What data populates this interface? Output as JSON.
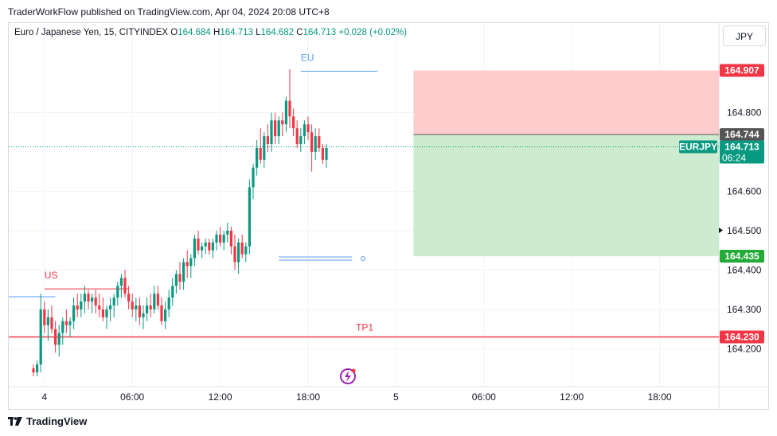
{
  "header": {
    "published": "TraderWorkFlow published on TradingView.com, Apr 04, 2024 20:08 UTC+8"
  },
  "legend": {
    "symbol": "Euro / Japanese Yen, 15, CITYINDEX",
    "o_label": "O",
    "o": "164.684",
    "h_label": "H",
    "h": "164.713",
    "l_label": "L",
    "l": "164.682",
    "c_label": "C",
    "c": "164.713",
    "change": "+0.028 (+0.02%)"
  },
  "currency_button": "JPY",
  "footer": {
    "brand": "TradingView"
  },
  "colors": {
    "up": "#089981",
    "down": "#f23645",
    "stop_zone": "#fdcdcd",
    "target_zone": "#cdebcf",
    "red_label": "#f23645",
    "green_label": "#22ab36",
    "dark_label": "#555555",
    "current_label": "#089981"
  },
  "chart_data": {
    "type": "candlestick",
    "symbol": "EURJPY",
    "ylim": [
      164.12,
      165.04
    ],
    "y_ticks": [
      {
        "value": 164.8,
        "label": "164.800"
      },
      {
        "value": 164.6,
        "label": "164.600"
      },
      {
        "value": 164.5,
        "label": "164.500"
      },
      {
        "value": 164.4,
        "label": "164.400"
      },
      {
        "value": 164.3,
        "label": "164.300"
      },
      {
        "value": 164.2,
        "label": "164.200"
      }
    ],
    "x_ticks": [
      {
        "bar": 3,
        "label": "4"
      },
      {
        "bar": 27,
        "label": "06:00"
      },
      {
        "bar": 51,
        "label": "12:00"
      },
      {
        "bar": 75,
        "label": "18:00"
      },
      {
        "bar": 99,
        "label": "5"
      },
      {
        "bar": 123,
        "label": "06:00"
      },
      {
        "bar": 147,
        "label": "12:00"
      },
      {
        "bar": 171,
        "label": "18:00"
      }
    ],
    "price_labels": [
      {
        "value": 164.907,
        "label": "164.907",
        "kind": "red"
      },
      {
        "value": 164.744,
        "label": "164.744",
        "kind": "dark"
      },
      {
        "value": 164.435,
        "label": "164.435",
        "kind": "green"
      },
      {
        "value": 164.23,
        "label": "164.230",
        "kind": "red"
      }
    ],
    "current": {
      "value": 164.713,
      "label": "164.713",
      "symbol": "EURJPY",
      "countdown": "06:24"
    },
    "annotations": [
      {
        "text": "EU",
        "value": 164.905,
        "from_bar": 73,
        "to_bar": 94
      },
      {
        "text": "US",
        "value": 164.352,
        "from_bar": 3,
        "to_bar": 26
      },
      {
        "text": "TP1",
        "value": 164.23
      }
    ],
    "levels": {
      "old_high": 164.332,
      "range_low_a": 164.433,
      "range_low_b": 164.425
    },
    "position": {
      "from_bar": 104,
      "stop": 164.907,
      "entry": 164.744,
      "target": 164.435
    },
    "candles": [
      [
        164.15,
        164.16,
        164.13,
        164.14
      ],
      [
        164.14,
        164.17,
        164.13,
        164.16
      ],
      [
        164.16,
        164.34,
        164.14,
        164.3
      ],
      [
        164.3,
        164.32,
        164.24,
        164.26
      ],
      [
        164.26,
        164.3,
        164.22,
        164.28
      ],
      [
        164.28,
        164.31,
        164.24,
        164.25
      ],
      [
        164.25,
        164.27,
        164.19,
        164.21
      ],
      [
        164.21,
        164.26,
        164.18,
        164.24
      ],
      [
        164.24,
        164.28,
        164.21,
        164.27
      ],
      [
        164.27,
        164.3,
        164.24,
        164.26
      ],
      [
        164.26,
        164.28,
        164.23,
        164.27
      ],
      [
        164.27,
        164.33,
        164.25,
        164.31
      ],
      [
        164.31,
        164.34,
        164.28,
        164.3
      ],
      [
        164.3,
        164.34,
        164.28,
        164.32
      ],
      [
        164.32,
        164.36,
        164.29,
        164.34
      ],
      [
        164.34,
        164.35,
        164.3,
        164.32
      ],
      [
        164.32,
        164.34,
        164.29,
        164.33
      ],
      [
        164.33,
        164.35,
        164.29,
        164.31
      ],
      [
        164.31,
        164.34,
        164.28,
        164.3
      ],
      [
        164.3,
        164.33,
        164.27,
        164.28
      ],
      [
        164.28,
        164.31,
        164.25,
        164.3
      ],
      [
        164.3,
        164.33,
        164.27,
        164.31
      ],
      [
        164.31,
        164.34,
        164.28,
        164.33
      ],
      [
        164.33,
        164.37,
        164.31,
        164.36
      ],
      [
        164.36,
        164.39,
        164.33,
        164.38
      ],
      [
        164.38,
        164.4,
        164.33,
        164.34
      ],
      [
        164.34,
        164.36,
        164.3,
        164.32
      ],
      [
        164.32,
        164.34,
        164.28,
        164.3
      ],
      [
        164.3,
        164.33,
        164.27,
        164.31
      ],
      [
        164.31,
        164.33,
        164.26,
        164.28
      ],
      [
        164.28,
        164.31,
        164.25,
        164.29
      ],
      [
        164.29,
        164.33,
        164.27,
        164.31
      ],
      [
        164.31,
        164.34,
        164.28,
        164.3
      ],
      [
        164.3,
        164.36,
        164.29,
        164.34
      ],
      [
        164.34,
        164.36,
        164.3,
        164.31
      ],
      [
        164.31,
        164.33,
        164.26,
        164.27
      ],
      [
        164.27,
        164.32,
        164.25,
        164.3
      ],
      [
        164.3,
        164.35,
        164.28,
        164.33
      ],
      [
        164.33,
        164.38,
        164.31,
        164.36
      ],
      [
        164.36,
        164.4,
        164.34,
        164.39
      ],
      [
        164.39,
        164.42,
        164.35,
        164.37
      ],
      [
        164.37,
        164.43,
        164.35,
        164.42
      ],
      [
        164.42,
        164.45,
        164.38,
        164.41
      ],
      [
        164.41,
        164.44,
        164.38,
        164.43
      ],
      [
        164.43,
        164.49,
        164.41,
        164.48
      ],
      [
        164.48,
        164.5,
        164.44,
        164.45
      ],
      [
        164.45,
        164.47,
        164.43,
        164.46
      ],
      [
        164.46,
        164.48,
        164.44,
        164.47
      ],
      [
        164.47,
        164.48,
        164.44,
        164.45
      ],
      [
        164.45,
        164.48,
        164.43,
        164.47
      ],
      [
        164.47,
        164.5,
        164.45,
        164.49
      ],
      [
        164.49,
        164.51,
        164.46,
        164.47
      ],
      [
        164.47,
        164.5,
        164.45,
        164.49
      ],
      [
        164.49,
        164.52,
        164.47,
        164.5
      ],
      [
        164.5,
        164.51,
        164.44,
        164.46
      ],
      [
        164.46,
        164.49,
        164.4,
        164.42
      ],
      [
        164.42,
        164.48,
        164.39,
        164.47
      ],
      [
        164.47,
        164.49,
        164.43,
        164.44
      ],
      [
        164.44,
        164.47,
        164.42,
        164.46
      ],
      [
        164.46,
        164.63,
        164.44,
        164.61
      ],
      [
        164.61,
        164.67,
        164.58,
        164.66
      ],
      [
        164.66,
        164.73,
        164.64,
        164.71
      ],
      [
        164.71,
        164.76,
        164.67,
        164.68
      ],
      [
        164.68,
        164.75,
        164.66,
        164.74
      ],
      [
        164.74,
        164.77,
        164.7,
        164.72
      ],
      [
        164.72,
        164.8,
        164.7,
        164.78
      ],
      [
        164.78,
        164.8,
        164.72,
        164.74
      ],
      [
        164.74,
        164.79,
        164.72,
        164.78
      ],
      [
        164.78,
        164.8,
        164.74,
        164.77
      ],
      [
        164.77,
        164.84,
        164.75,
        164.83
      ],
      [
        164.83,
        164.91,
        164.76,
        164.79
      ],
      [
        164.79,
        164.81,
        164.74,
        164.76
      ],
      [
        164.76,
        164.78,
        164.71,
        164.72
      ],
      [
        164.72,
        164.76,
        164.7,
        164.74
      ],
      [
        164.74,
        164.78,
        164.72,
        164.77
      ],
      [
        164.77,
        164.79,
        164.73,
        164.75
      ],
      [
        164.75,
        164.77,
        164.65,
        164.7
      ],
      [
        164.7,
        164.76,
        164.68,
        164.74
      ],
      [
        164.74,
        164.76,
        164.7,
        164.71
      ],
      [
        164.71,
        164.72,
        164.67,
        164.68
      ],
      [
        164.68,
        164.72,
        164.66,
        164.71
      ]
    ]
  }
}
